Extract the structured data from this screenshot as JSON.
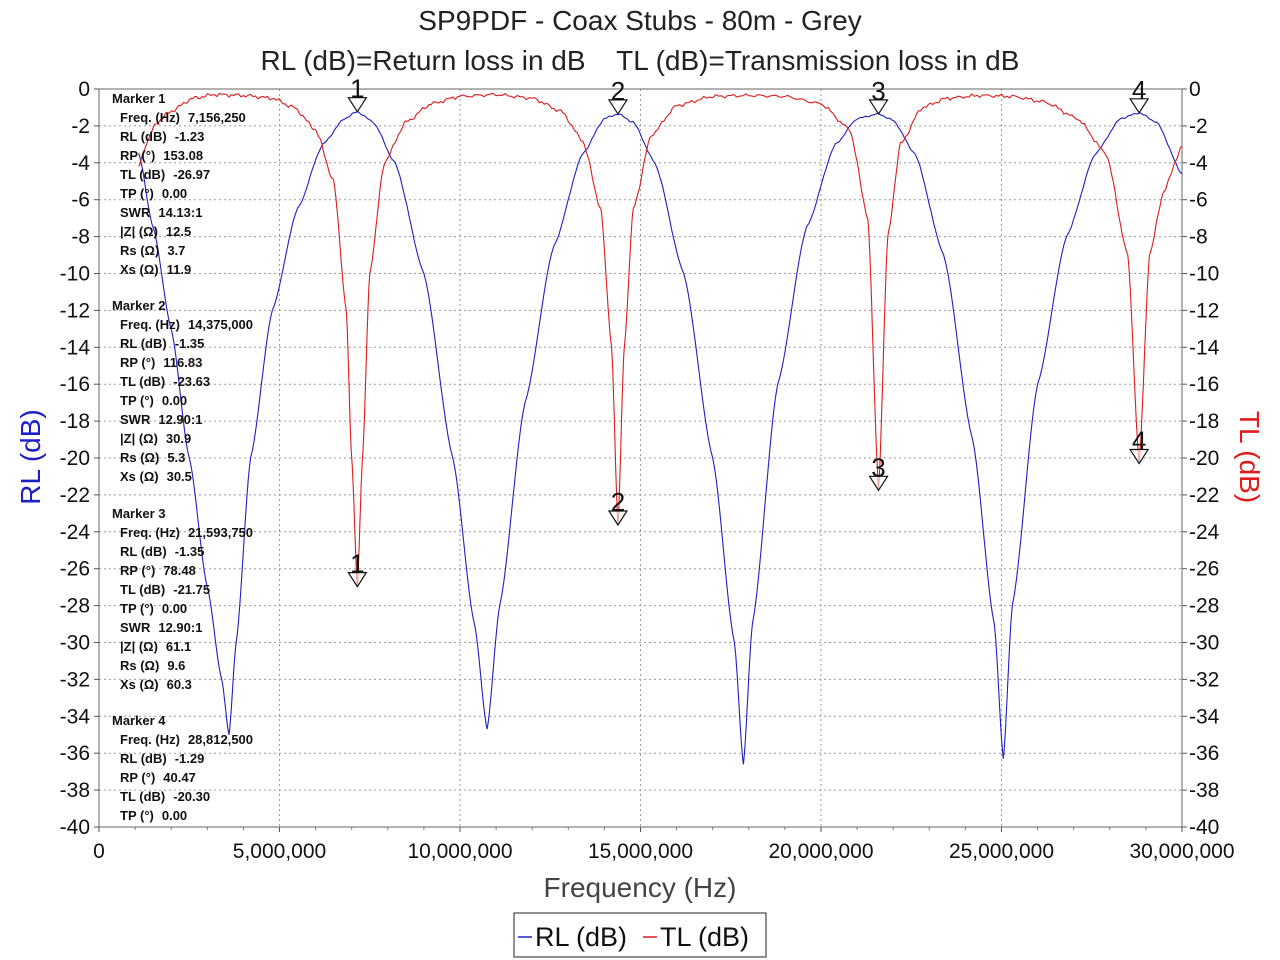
{
  "colors": {
    "rl": "#1f1fc8",
    "tl": "#e01b1b",
    "grid": "#9a9a9a",
    "axis": "#555555"
  },
  "chart_data": {
    "type": "line",
    "title": "SP9PDF - Coax Stubs - 80m - Grey",
    "subtitle": "RL (dB)=Return loss in dB    TL (dB)=Transmission loss in dB",
    "xlabel": "Frequency (Hz)",
    "ylabel_left": "RL (dB)",
    "ylabel_right": "TL (dB)",
    "xlim": [
      0,
      30000000
    ],
    "ylim": [
      -40,
      0
    ],
    "x_ticks": [
      "0",
      "5,000,000",
      "10,000,000",
      "15,000,000",
      "20,000,000",
      "25,000,000",
      "30,000,000"
    ],
    "y_ticks": [
      "0",
      "-2",
      "-4",
      "-6",
      "-8",
      "-10",
      "-12",
      "-14",
      "-16",
      "-18",
      "-20",
      "-22",
      "-24",
      "-26",
      "-28",
      "-30",
      "-32",
      "-34",
      "-36",
      "-38",
      "-40"
    ],
    "grid": true,
    "legend_position": "bottom",
    "series": [
      {
        "name": "RL (dB)",
        "color": "#1f1fc8",
        "x": [
          1100000,
          1500000,
          2000000,
          2500000,
          3000000,
          3400000,
          3600000,
          3800000,
          4200000,
          4800000,
          5500000,
          6200000,
          6800000,
          7156250,
          7600000,
          8200000,
          9000000,
          9800000,
          10400000,
          10750000,
          11100000,
          11800000,
          12600000,
          13400000,
          14000000,
          14375000,
          14800000,
          15400000,
          16200000,
          17000000,
          17600000,
          17850000,
          18100000,
          18800000,
          19600000,
          20400000,
          21000000,
          21593750,
          22000000,
          22600000,
          23400000,
          24200000,
          24800000,
          25050000,
          25300000,
          26000000,
          26800000,
          27600000,
          28300000,
          28812500,
          29300000,
          30000000
        ],
        "y": [
          -3.5,
          -7.5,
          -13,
          -20,
          -27,
          -32,
          -35,
          -30,
          -20,
          -12,
          -6.5,
          -3,
          -1.6,
          -1.23,
          -1.8,
          -4,
          -10,
          -20,
          -29,
          -34.7,
          -28,
          -17,
          -8.5,
          -3.5,
          -1.6,
          -1.35,
          -1.8,
          -4,
          -10,
          -20,
          -30,
          -36.6,
          -29,
          -16,
          -7.5,
          -3,
          -1.6,
          -1.35,
          -1.7,
          -3.5,
          -9,
          -19,
          -29,
          -36.3,
          -28,
          -16,
          -8,
          -3.5,
          -1.6,
          -1.29,
          -1.8,
          -4.6
        ]
      },
      {
        "name": "TL (dB)",
        "color": "#e01b1b",
        "x": [
          1100000,
          1300000,
          1600000,
          2000000,
          2600000,
          3200000,
          4000000,
          4800000,
          5400000,
          6000000,
          6500000,
          6850000,
          7000000,
          7156250,
          7300000,
          7500000,
          7900000,
          8500000,
          9200000,
          10000000,
          11000000,
          12000000,
          12800000,
          13400000,
          13900000,
          14200000,
          14375000,
          14550000,
          14800000,
          15300000,
          16000000,
          17000000,
          18000000,
          19000000,
          20000000,
          20800000,
          21300000,
          21593750,
          21850000,
          22200000,
          22800000,
          23500000,
          24400000,
          25300000,
          26200000,
          27100000,
          27900000,
          28500000,
          28812500,
          29100000,
          29500000,
          30000000
        ],
        "y": [
          -4.2,
          -3.0,
          -1.8,
          -1.2,
          -0.5,
          -0.3,
          -0.35,
          -0.5,
          -1.0,
          -2.2,
          -5,
          -12,
          -20,
          -26.97,
          -20,
          -10,
          -4,
          -1.8,
          -0.8,
          -0.4,
          -0.3,
          -0.5,
          -1.2,
          -2.8,
          -6.5,
          -14,
          -23.63,
          -14,
          -6.5,
          -2.5,
          -0.9,
          -0.4,
          -0.35,
          -0.4,
          -0.8,
          -2.2,
          -7,
          -21.75,
          -8,
          -3,
          -1.0,
          -0.5,
          -0.35,
          -0.4,
          -0.7,
          -1.6,
          -3.5,
          -9,
          -20.3,
          -9,
          -5.5,
          -3.1
        ]
      }
    ],
    "markers": [
      {
        "id": "1",
        "freq": 7156250,
        "rl": -1.23,
        "tl": -26.97
      },
      {
        "id": "2",
        "freq": 14375000,
        "rl": -1.35,
        "tl": -23.63
      },
      {
        "id": "3",
        "freq": 21593750,
        "rl": -1.35,
        "tl": -21.75
      },
      {
        "id": "4",
        "freq": 28812500,
        "rl": -1.29,
        "tl": -20.3
      }
    ],
    "marker_table": [
      {
        "title": "Marker 1",
        "rows": [
          [
            "Freq. (Hz)",
            "7,156,250"
          ],
          [
            "RL (dB)",
            "-1.23"
          ],
          [
            "RP (°)",
            "153.08"
          ],
          [
            "TL (dB)",
            "-26.97"
          ],
          [
            "TP (°)",
            "0.00"
          ],
          [
            "SWR",
            "14.13:1"
          ],
          [
            "|Z| (Ω)",
            "12.5"
          ],
          [
            "Rs (Ω)",
            "3.7"
          ],
          [
            "Xs (Ω)",
            "11.9"
          ]
        ]
      },
      {
        "title": "Marker 2",
        "rows": [
          [
            "Freq. (Hz)",
            "14,375,000"
          ],
          [
            "RL (dB)",
            "-1.35"
          ],
          [
            "RP (°)",
            "116.83"
          ],
          [
            "TL (dB)",
            "-23.63"
          ],
          [
            "TP (°)",
            "0.00"
          ],
          [
            "SWR",
            "12.90:1"
          ],
          [
            "|Z| (Ω)",
            "30.9"
          ],
          [
            "Rs (Ω)",
            "5.3"
          ],
          [
            "Xs (Ω)",
            "30.5"
          ]
        ]
      },
      {
        "title": "Marker 3",
        "rows": [
          [
            "Freq. (Hz)",
            "21,593,750"
          ],
          [
            "RL (dB)",
            "-1.35"
          ],
          [
            "RP (°)",
            "78.48"
          ],
          [
            "TL (dB)",
            "-21.75"
          ],
          [
            "TP (°)",
            "0.00"
          ],
          [
            "SWR",
            "12.90:1"
          ],
          [
            "|Z| (Ω)",
            "61.1"
          ],
          [
            "Rs (Ω)",
            "9.6"
          ],
          [
            "Xs (Ω)",
            "60.3"
          ]
        ]
      },
      {
        "title": "Marker 4",
        "rows": [
          [
            "Freq. (Hz)",
            "28,812,500"
          ],
          [
            "RL (dB)",
            "-1.29"
          ],
          [
            "RP (°)",
            "40.47"
          ],
          [
            "TL (dB)",
            "-20.30"
          ],
          [
            "TP (°)",
            "0.00"
          ]
        ]
      }
    ]
  }
}
